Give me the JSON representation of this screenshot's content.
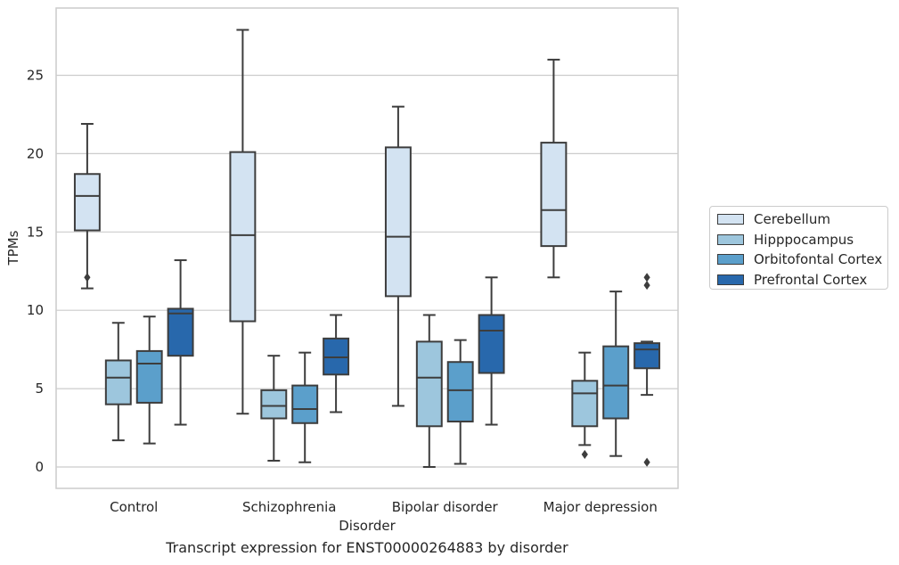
{
  "chart_data": {
    "type": "box",
    "title": "",
    "caption": "Transcript expression for ENST00000264883 by disorder",
    "xlabel": "Disorder",
    "ylabel": "TPMs",
    "ylim": [
      -1.3,
      29.0
    ],
    "yticks": [
      0,
      5,
      10,
      15,
      20,
      25
    ],
    "grid": true,
    "legend_position": "right",
    "categories": [
      "Control",
      "Schizophrenia",
      "Bipolar disorder",
      "Major depression"
    ],
    "series": [
      {
        "name": "Cerebellum",
        "color": "#d3e3f2",
        "boxes": [
          {
            "whisker_low": 11.4,
            "q1": 15.1,
            "median": 17.3,
            "q3": 18.7,
            "whisker_high": 21.9,
            "outliers": [
              12.1
            ]
          },
          {
            "whisker_low": 3.4,
            "q1": 9.3,
            "median": 14.8,
            "q3": 20.1,
            "whisker_high": 27.9,
            "outliers": []
          },
          {
            "whisker_low": 3.9,
            "q1": 10.9,
            "median": 14.7,
            "q3": 20.4,
            "whisker_high": 23.0,
            "outliers": []
          },
          {
            "whisker_low": 12.1,
            "q1": 14.1,
            "median": 16.4,
            "q3": 20.7,
            "whisker_high": 26.0,
            "outliers": []
          }
        ]
      },
      {
        "name": "Hipppocampus",
        "color": "#9dc6dd",
        "boxes": [
          {
            "whisker_low": 1.7,
            "q1": 4.0,
            "median": 5.7,
            "q3": 6.8,
            "whisker_high": 9.2,
            "outliers": []
          },
          {
            "whisker_low": 0.4,
            "q1": 3.1,
            "median": 3.9,
            "q3": 4.9,
            "whisker_high": 7.1,
            "outliers": []
          },
          {
            "whisker_low": 0.0,
            "q1": 2.6,
            "median": 5.7,
            "q3": 8.0,
            "whisker_high": 9.7,
            "outliers": []
          },
          {
            "whisker_low": 1.4,
            "q1": 2.6,
            "median": 4.7,
            "q3": 5.5,
            "whisker_high": 7.3,
            "outliers": [
              0.8
            ]
          }
        ]
      },
      {
        "name": "Orbitofontal Cortex",
        "color": "#5b9fcb",
        "boxes": [
          {
            "whisker_low": 1.5,
            "q1": 4.1,
            "median": 6.6,
            "q3": 7.4,
            "whisker_high": 9.6,
            "outliers": []
          },
          {
            "whisker_low": 0.3,
            "q1": 2.8,
            "median": 3.7,
            "q3": 5.2,
            "whisker_high": 7.3,
            "outliers": []
          },
          {
            "whisker_low": 0.2,
            "q1": 2.9,
            "median": 4.9,
            "q3": 6.7,
            "whisker_high": 8.1,
            "outliers": []
          },
          {
            "whisker_low": 0.7,
            "q1": 3.1,
            "median": 5.2,
            "q3": 7.7,
            "whisker_high": 11.2,
            "outliers": []
          }
        ]
      },
      {
        "name": "Prefrontal Cortex",
        "color": "#2868ac",
        "boxes": [
          {
            "whisker_low": 2.7,
            "q1": 7.1,
            "median": 9.8,
            "q3": 10.1,
            "whisker_high": 13.2,
            "outliers": []
          },
          {
            "whisker_low": 3.5,
            "q1": 5.9,
            "median": 7.0,
            "q3": 8.2,
            "whisker_high": 9.7,
            "outliers": []
          },
          {
            "whisker_low": 2.7,
            "q1": 6.0,
            "median": 8.7,
            "q3": 9.7,
            "whisker_high": 12.1,
            "outliers": []
          },
          {
            "whisker_low": 4.6,
            "q1": 6.3,
            "median": 7.5,
            "q3": 7.9,
            "whisker_high": 8.0,
            "outliers": [
              12.1,
              11.6,
              0.3
            ]
          }
        ]
      }
    ]
  }
}
